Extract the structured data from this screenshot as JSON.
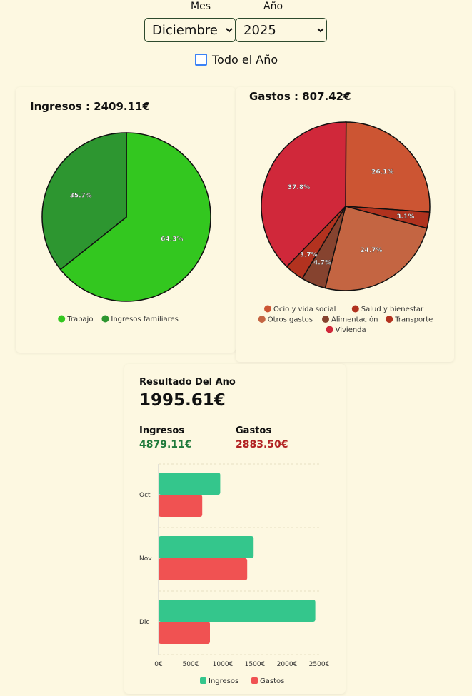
{
  "filters": {
    "month_label": "Mes",
    "year_label": "Año",
    "month_value": "Diciembre",
    "year_value": "2025",
    "all_year_label": "Todo el Año",
    "all_year_checked": false
  },
  "income_card": {
    "title": "Ingresos : 2409.11€"
  },
  "expense_card": {
    "title": "Gastos : 807.42€"
  },
  "pie_income": {
    "type": "pie",
    "slices": [
      {
        "name": "Trabajo",
        "percent": 64.3,
        "label": "64.3%",
        "color": "#33c71f"
      },
      {
        "name": "Ingresos familiares",
        "percent": 35.7,
        "label": "35.7%",
        "color": "#2d9630"
      }
    ]
  },
  "pie_expense": {
    "type": "pie",
    "slices": [
      {
        "name": "Ocio y vida social",
        "percent": 26.1,
        "label": "26.1%",
        "color": "#cc5533"
      },
      {
        "name": "Salud y bienestar",
        "percent": 3.1,
        "label": "3.1%",
        "color": "#b0321e"
      },
      {
        "name": "Otros gastos",
        "percent": 24.7,
        "label": "24.7%",
        "color": "#c46542"
      },
      {
        "name": "Alimentación",
        "percent": 4.7,
        "label": "4.7%",
        "color": "#86432f"
      },
      {
        "name": "Transporte",
        "percent": 3.7,
        "label": "3.7%",
        "color": "#b3321f"
      },
      {
        "name": "Vivienda",
        "percent": 37.8,
        "label": "37.8%",
        "color": "#d0283a"
      }
    ]
  },
  "result": {
    "title": "Resultado Del Año",
    "total": "1995.61€",
    "income_label": "Ingresos",
    "income_value": "4879.11€",
    "expense_label": "Gastos",
    "expense_value": "2883.50€",
    "income_color": "#1f7a3a",
    "expense_color": "#b22222"
  },
  "chart_data": {
    "type": "bar",
    "orientation": "horizontal",
    "categories": [
      "Oct",
      "Nov",
      "Dic"
    ],
    "series": [
      {
        "name": "Ingresos",
        "values": [
          960,
          1480,
          2440
        ],
        "color": "#34c68c"
      },
      {
        "name": "Gastos",
        "values": [
          680,
          1380,
          800
        ],
        "color": "#f05252"
      }
    ],
    "xlim": [
      0,
      2500
    ],
    "xticks": [
      "0€",
      "500€",
      "1000€",
      "1500€",
      "2000€",
      "2500€"
    ],
    "legend": "bottom",
    "grid": true
  }
}
